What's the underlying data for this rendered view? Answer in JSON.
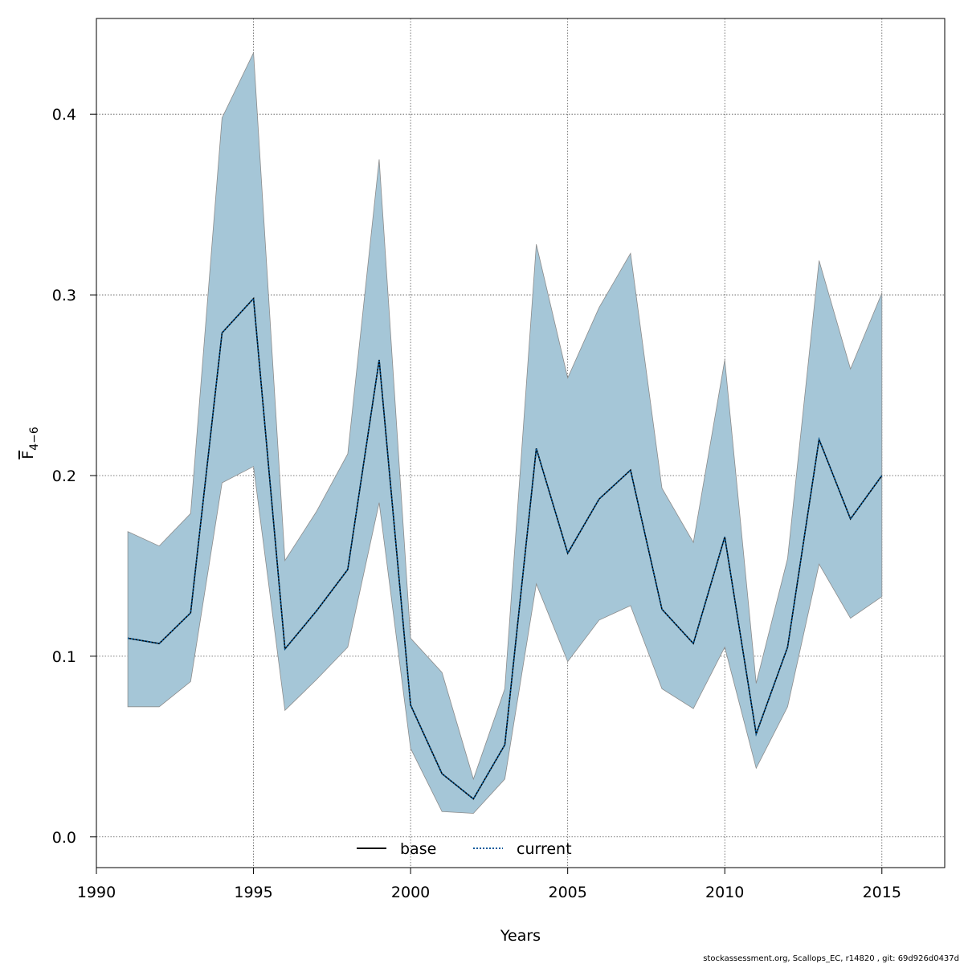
{
  "chart_data": {
    "type": "line",
    "xlabel": "Years",
    "ylabel": {
      "main": "F",
      "sub": "4−6"
    },
    "xlim": [
      1990,
      2017
    ],
    "ylim": [
      -0.017,
      0.453
    ],
    "xticks": [
      1990,
      1995,
      2000,
      2005,
      2010,
      2015
    ],
    "xtick_labels": [
      "1990",
      "1995",
      "2000",
      "2005",
      "2010",
      "2015"
    ],
    "yticks": [
      0.0,
      0.1,
      0.2,
      0.3,
      0.4
    ],
    "ytick_labels": [
      "0.0",
      "0.1",
      "0.2",
      "0.3",
      "0.4"
    ],
    "grid": true,
    "band_color": "#a5c6d7",
    "band_edge_color": "#8c8c8c",
    "x": [
      1991,
      1992,
      1993,
      1994,
      1995,
      1996,
      1997,
      1998,
      1999,
      2000,
      2001,
      2002,
      2003,
      2004,
      2005,
      2006,
      2007,
      2008,
      2009,
      2010,
      2011,
      2012,
      2013,
      2014,
      2015
    ],
    "band": {
      "lower": [
        0.072,
        0.072,
        0.086,
        0.196,
        0.205,
        0.07,
        0.087,
        0.105,
        0.185,
        0.049,
        0.014,
        0.013,
        0.032,
        0.14,
        0.097,
        0.12,
        0.128,
        0.082,
        0.071,
        0.105,
        0.038,
        0.072,
        0.151,
        0.121,
        0.133
      ],
      "upper": [
        0.169,
        0.161,
        0.179,
        0.398,
        0.434,
        0.153,
        0.18,
        0.212,
        0.375,
        0.11,
        0.091,
        0.032,
        0.082,
        0.328,
        0.254,
        0.293,
        0.323,
        0.193,
        0.163,
        0.264,
        0.085,
        0.154,
        0.319,
        0.259,
        0.301
      ]
    },
    "series": [
      {
        "name": "base",
        "color": "#000000",
        "dash": "solid",
        "values": [
          0.11,
          0.107,
          0.124,
          0.279,
          0.298,
          0.104,
          0.125,
          0.148,
          0.264,
          0.073,
          0.035,
          0.021,
          0.051,
          0.215,
          0.157,
          0.187,
          0.203,
          0.126,
          0.107,
          0.166,
          0.057,
          0.105,
          0.22,
          0.176,
          0.2
        ]
      },
      {
        "name": "current",
        "color": "#005a9c",
        "dash": "dotted",
        "values": [
          0.11,
          0.107,
          0.124,
          0.279,
          0.298,
          0.104,
          0.125,
          0.148,
          0.264,
          0.073,
          0.035,
          0.021,
          0.051,
          0.215,
          0.157,
          0.187,
          0.203,
          0.126,
          0.107,
          0.166,
          0.057,
          0.105,
          0.22,
          0.176,
          0.2
        ]
      }
    ],
    "legend": {
      "placement": "bottom-center",
      "entries": [
        "base",
        "current"
      ]
    }
  },
  "footer": "stockassessment.org, Scallops_EC, r14820 , git: 69d926d0437d"
}
